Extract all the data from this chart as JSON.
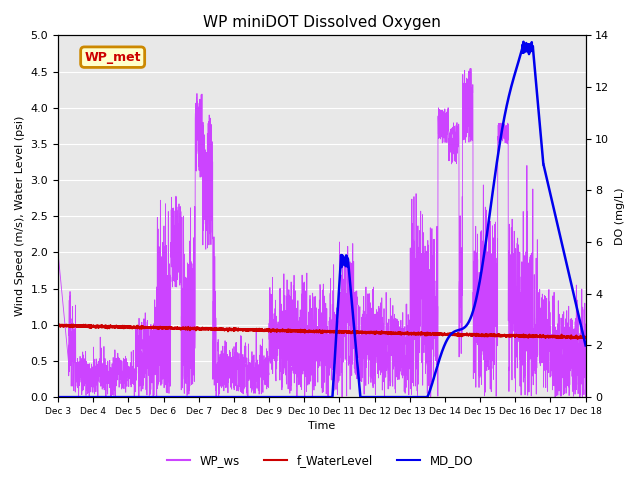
{
  "title": "WP miniDOT Dissolved Oxygen",
  "ylabel_left": "Wind Speed (m/s), Water Level (psi)",
  "ylabel_right": "DO (mg/L)",
  "xlabel": "Time",
  "xlim_days": [
    3,
    18
  ],
  "ylim_left": [
    0.0,
    5.0
  ],
  "ylim_right": [
    0,
    14
  ],
  "bg_color": "#e8e8e8",
  "fig_color": "#ffffff",
  "ws_color": "#cc44ff",
  "wl_color": "#cc0000",
  "do_color": "#0000ee",
  "annotation_box_text": "WP_met",
  "annotation_box_facecolor": "#ffffcc",
  "annotation_box_edgecolor": "#cc8800",
  "annotation_text_color": "#cc0000",
  "legend_labels": [
    "WP_ws",
    "f_WaterLevel",
    "MD_DO"
  ],
  "legend_colors": [
    "#cc44ff",
    "#cc0000",
    "#0000ee"
  ],
  "yticks_left": [
    0.0,
    0.5,
    1.0,
    1.5,
    2.0,
    2.5,
    3.0,
    3.5,
    4.0,
    4.5,
    5.0
  ],
  "yticks_right": [
    0,
    2,
    4,
    6,
    8,
    10,
    12,
    14
  ],
  "xtick_labels": [
    "Dec 3",
    "Dec 4",
    "Dec 5",
    "Dec 6",
    "Dec 7",
    "Dec 8",
    "Dec 9",
    "Dec 10",
    "Dec 11",
    "Dec 12",
    "Dec 13",
    "Dec 14",
    "Dec 15",
    "Dec 16",
    "Dec 17",
    "Dec 18"
  ],
  "xtick_positions": [
    3,
    4,
    5,
    6,
    7,
    8,
    9,
    10,
    11,
    12,
    13,
    14,
    15,
    16,
    17,
    18
  ]
}
